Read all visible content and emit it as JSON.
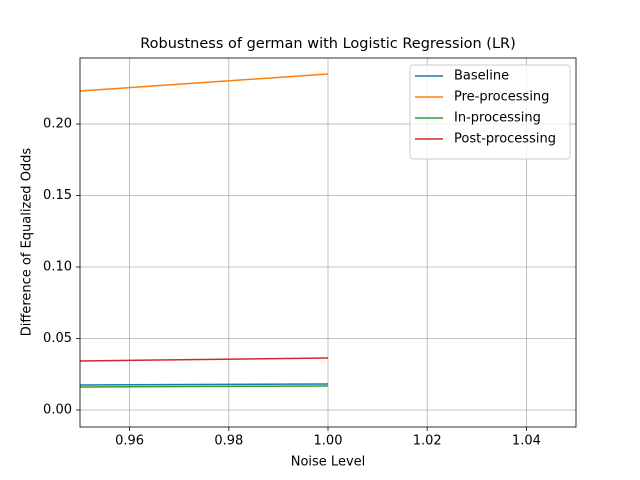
{
  "chart_data": {
    "type": "line",
    "title": "Robustness of german with Logistic Regression (LR)",
    "x_label": "Noise Level",
    "y_label": "Difference of Equalized Odds",
    "x": [
      0.95,
      1.0
    ],
    "series": [
      {
        "name": "Baseline",
        "color": "#1f77b4",
        "values": [
          0.0175,
          0.0182
        ]
      },
      {
        "name": "Pre-processing",
        "color": "#ff7f0e",
        "values": [
          0.2231,
          0.235
        ]
      },
      {
        "name": "In-processing",
        "color": "#2ca02c",
        "values": [
          0.0161,
          0.0168
        ]
      },
      {
        "name": "Post-processing",
        "color": "#d62728",
        "values": [
          0.0343,
          0.0364
        ]
      }
    ],
    "xlim": [
      0.95,
      1.05
    ],
    "ylim": [
      -0.0119,
      0.2462
    ],
    "xticks": [
      0.96,
      0.98,
      {
        "value": 1,
        "label": "1.00"
      },
      1.02,
      1.04
    ],
    "yticks": [
      {
        "value": 0,
        "label": "0.00"
      },
      0.05,
      {
        "value": 0.1,
        "label": "0.10"
      },
      0.15,
      {
        "value": 0.2,
        "label": "0.20"
      }
    ],
    "grid": true,
    "legend": "upper-right"
  }
}
